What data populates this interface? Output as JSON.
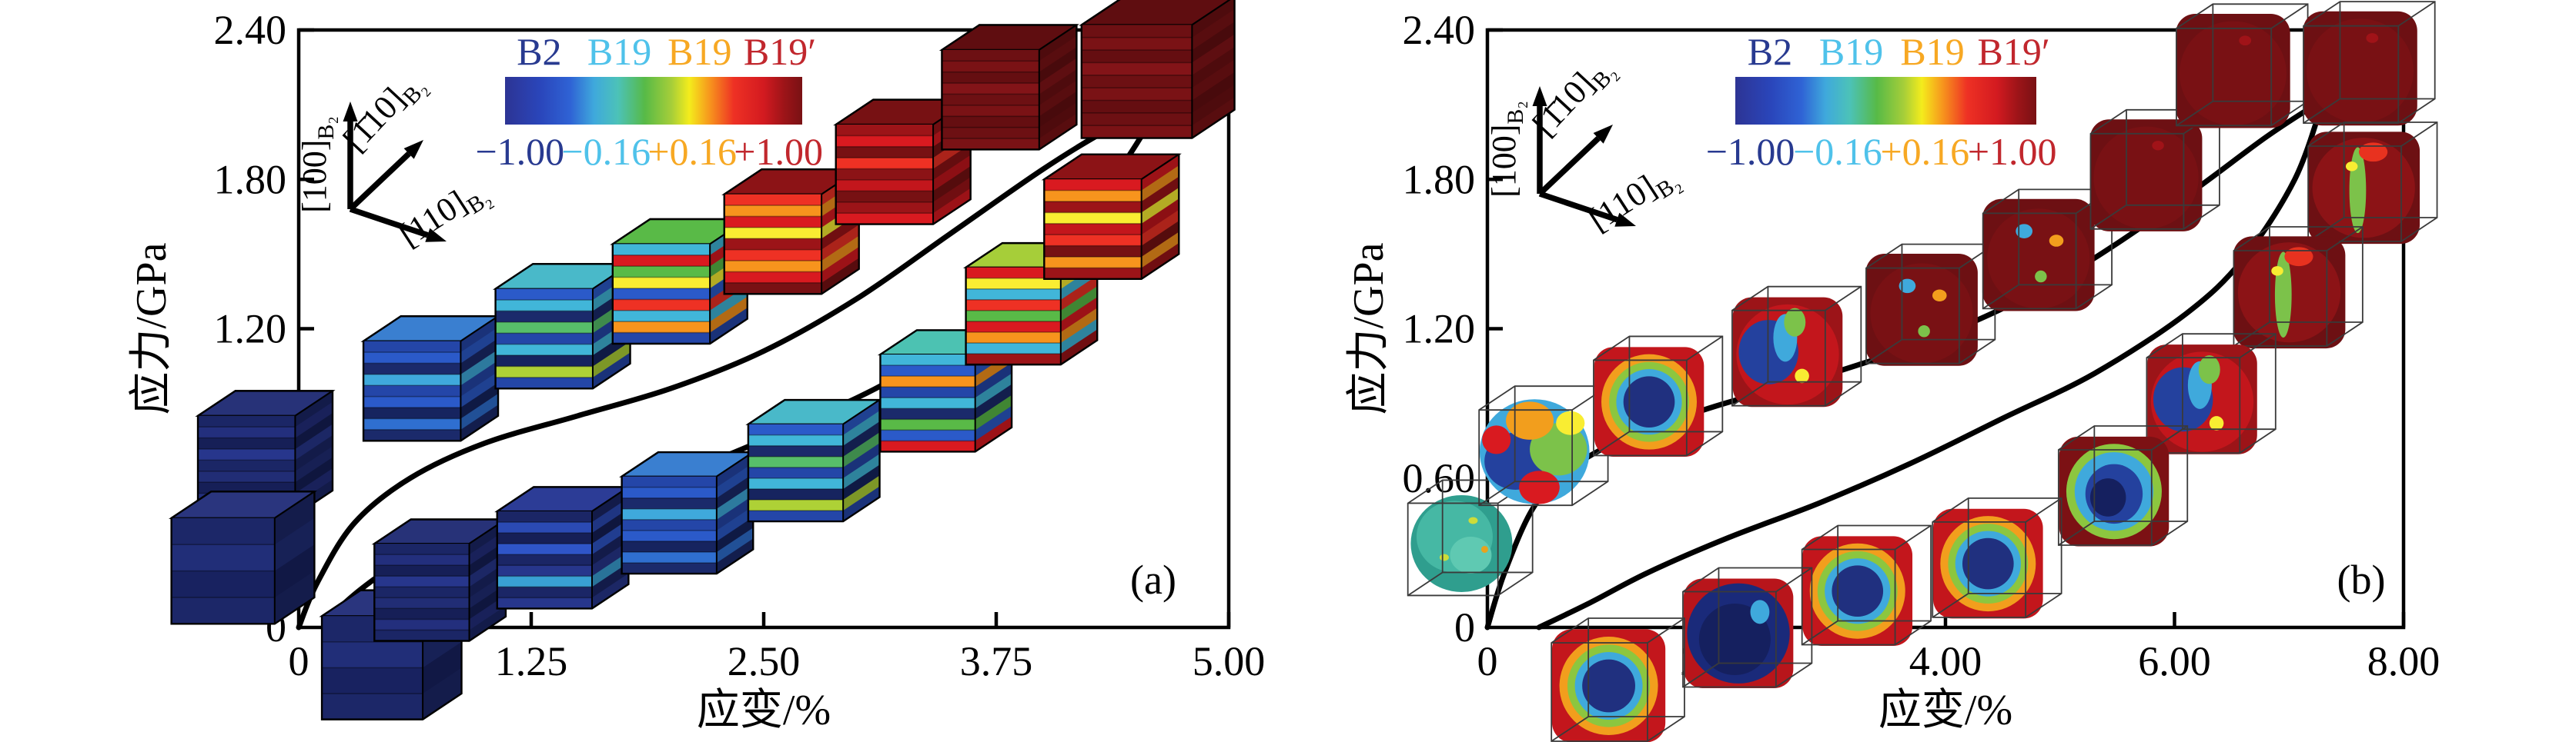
{
  "figure": {
    "background": "#ffffff",
    "description_labels": {
      "panel_a": "(a)",
      "panel_b": "(b)"
    }
  },
  "chart_data": [
    {
      "type": "line",
      "title": "(a)",
      "xlabel": "应变/%",
      "ylabel": "应力/GPa",
      "xlim": [
        0,
        5.0
      ],
      "ylim": [
        0,
        2.4
      ],
      "grid": false,
      "x_ticks": [
        0,
        1.25,
        2.5,
        3.75,
        5.0
      ],
      "x_tick_labels": [
        "0",
        "1.25",
        "2.50",
        "3.75",
        "5.00"
      ],
      "y_ticks": [
        0,
        0.6,
        1.2,
        1.8,
        2.4
      ],
      "y_tick_labels": [
        "0",
        "0.60",
        "1.20",
        "1.80",
        "2.40"
      ],
      "curve_color": "#000000",
      "series": [
        {
          "name": "loading",
          "points": [
            [
              0,
              0
            ],
            [
              0.1,
              0.18
            ],
            [
              0.3,
              0.42
            ],
            [
              0.6,
              0.6
            ],
            [
              1.0,
              0.74
            ],
            [
              1.5,
              0.85
            ],
            [
              2.0,
              0.96
            ],
            [
              2.5,
              1.11
            ],
            [
              3.0,
              1.32
            ],
            [
              3.5,
              1.58
            ],
            [
              4.0,
              1.84
            ],
            [
              4.35,
              2.0
            ],
            [
              4.63,
              2.1
            ]
          ]
        },
        {
          "name": "unloading",
          "points": [
            [
              4.63,
              2.1
            ],
            [
              4.45,
              1.88
            ],
            [
              4.1,
              1.52
            ],
            [
              3.7,
              1.25
            ],
            [
              3.2,
              1.0
            ],
            [
              2.7,
              0.82
            ],
            [
              2.2,
              0.66
            ],
            [
              1.7,
              0.52
            ],
            [
              1.2,
              0.4
            ],
            [
              0.8,
              0.34
            ],
            [
              0.5,
              0.24
            ],
            [
              0.25,
              0.1
            ],
            [
              0.15,
              0
            ]
          ]
        }
      ],
      "legend": {
        "phases": [
          {
            "label": "B2",
            "color": "#283a90"
          },
          {
            "label": "B19",
            "color": "#4fc2ea"
          },
          {
            "label": "B19",
            "color": "#f7a823"
          },
          {
            "label": "B19′",
            "color": "#c1272d"
          }
        ],
        "colorbar_tick_labels": [
          "−1.00",
          "−0.16",
          "+0.16",
          "+1.00"
        ],
        "colorbar_tick_colors": [
          "#283a90",
          "#4fc2ea",
          "#f7a823",
          "#c1272d"
        ],
        "colorbar_range": [
          -1.0,
          1.0
        ]
      },
      "inset_axes": {
        "up": "[100]",
        "diag": "[1̄10]",
        "right": "[110]",
        "subscript": "B₂"
      },
      "snapshots": [
        {
          "strain": -0.18,
          "stress": 0.7,
          "style": "layered",
          "palette": "navy",
          "size": 162
        },
        {
          "strain": 0.71,
          "stress": 1.0,
          "style": "layered",
          "palette": "blue",
          "size": 162
        },
        {
          "strain": 1.42,
          "stress": 1.21,
          "style": "layered",
          "palette": "blue_cyan",
          "size": 162
        },
        {
          "strain": 2.05,
          "stress": 1.39,
          "style": "layered",
          "palette": "mixed",
          "size": 162
        },
        {
          "strain": 2.65,
          "stress": 1.59,
          "style": "layered",
          "palette": "orange_red",
          "size": 162
        },
        {
          "strain": 3.25,
          "stress": 1.87,
          "style": "layered",
          "palette": "red",
          "size": 162
        },
        {
          "strain": 3.82,
          "stress": 2.17,
          "style": "layered",
          "palette": "darkred",
          "size": 162
        },
        {
          "strain": 4.62,
          "stress": 2.25,
          "style": "layered",
          "palette": "darkred",
          "size": 184
        },
        {
          "strain": -0.3,
          "stress": 0.28,
          "style": "layered",
          "palette": "navy_solid",
          "size": 172
        },
        {
          "strain": 0.5,
          "stress": -0.11,
          "style": "layered",
          "palette": "navy_solid",
          "size": 168
        },
        {
          "strain": 0.76,
          "stress": 0.19,
          "style": "layered",
          "palette": "navy",
          "size": 158
        },
        {
          "strain": 1.42,
          "stress": 0.32,
          "style": "layered",
          "palette": "navy_blue",
          "size": 158
        },
        {
          "strain": 2.09,
          "stress": 0.46,
          "style": "layered",
          "palette": "blue",
          "size": 158
        },
        {
          "strain": 2.77,
          "stress": 0.67,
          "style": "layered",
          "palette": "blue_cyan",
          "size": 158
        },
        {
          "strain": 3.48,
          "stress": 0.95,
          "style": "layered",
          "palette": "cyan_mixed",
          "size": 158
        },
        {
          "strain": 3.94,
          "stress": 1.3,
          "style": "layered",
          "palette": "mixed_warm",
          "size": 158
        },
        {
          "strain": 4.37,
          "stress": 1.65,
          "style": "layered",
          "palette": "red_mixed",
          "size": 162
        }
      ]
    },
    {
      "type": "line",
      "title": "(b)",
      "xlabel": "应变/%",
      "ylabel": "应力/GPa",
      "xlim": [
        0,
        8.0
      ],
      "ylim": [
        0,
        2.4
      ],
      "grid": false,
      "x_ticks": [
        0,
        2.0,
        4.0,
        6.0,
        8.0
      ],
      "x_tick_labels": [
        "0",
        "2.00",
        "4.00",
        "6.00",
        "8.00"
      ],
      "y_ticks": [
        0,
        0.6,
        1.2,
        1.8,
        2.4
      ],
      "y_tick_labels": [
        "0",
        "0.60",
        "1.20",
        "1.80",
        "2.40"
      ],
      "curve_color": "#000000",
      "series": [
        {
          "name": "loading",
          "points": [
            [
              0,
              0
            ],
            [
              0.15,
              0.22
            ],
            [
              0.4,
              0.48
            ],
            [
              0.7,
              0.63
            ],
            [
              1.2,
              0.76
            ],
            [
              2.0,
              0.89
            ],
            [
              3.0,
              1.02
            ],
            [
              4.0,
              1.18
            ],
            [
              5.0,
              1.4
            ],
            [
              6.0,
              1.7
            ],
            [
              6.8,
              1.97
            ],
            [
              7.3,
              2.12
            ]
          ]
        },
        {
          "name": "unloading",
          "points": [
            [
              7.3,
              2.12
            ],
            [
              7.05,
              1.8
            ],
            [
              6.6,
              1.48
            ],
            [
              6.1,
              1.26
            ],
            [
              5.3,
              1.02
            ],
            [
              4.5,
              0.84
            ],
            [
              3.7,
              0.66
            ],
            [
              2.9,
              0.5
            ],
            [
              2.1,
              0.36
            ],
            [
              1.4,
              0.22
            ],
            [
              0.9,
              0.1
            ],
            [
              0.45,
              0
            ]
          ]
        }
      ],
      "legend": {
        "phases": [
          {
            "label": "B2",
            "color": "#283a90"
          },
          {
            "label": "B19",
            "color": "#4fc2ea"
          },
          {
            "label": "B19",
            "color": "#f7a823"
          },
          {
            "label": "B19′",
            "color": "#c1272d"
          }
        ],
        "colorbar_tick_labels": [
          "−1.00",
          "−0.16",
          "+0.16",
          "+1.00"
        ],
        "colorbar_tick_colors": [
          "#283a90",
          "#4fc2ea",
          "#f7a823",
          "#c1272d"
        ],
        "colorbar_range": [
          -1.0,
          1.0
        ]
      },
      "inset_axes": {
        "up": "[100]",
        "diag": "[1̄10]",
        "right": "[110]",
        "subscript": "B₂"
      },
      "snapshots": [
        {
          "strain": -0.15,
          "stress": 0.36,
          "style": "blob",
          "palette": "sphere_teal",
          "size": 150
        },
        {
          "strain": 0.49,
          "stress": 0.73,
          "style": "blob",
          "palette": "rainbow",
          "size": 155
        },
        {
          "strain": 1.49,
          "stress": 0.93,
          "style": "blob",
          "palette": "ring_blue_red",
          "size": 155
        },
        {
          "strain": 2.7,
          "stress": 1.13,
          "style": "blob",
          "palette": "red_blue",
          "size": 155
        },
        {
          "strain": 3.87,
          "stress": 1.3,
          "style": "blob",
          "palette": "maroon_specks",
          "size": 155
        },
        {
          "strain": 4.89,
          "stress": 1.52,
          "style": "blob",
          "palette": "maroon_specks",
          "size": 155
        },
        {
          "strain": 5.83,
          "stress": 1.84,
          "style": "blob",
          "palette": "maroon",
          "size": 155
        },
        {
          "strain": 6.59,
          "stress": 2.26,
          "style": "blob",
          "palette": "maroon",
          "size": 158
        },
        {
          "strain": 7.7,
          "stress": 2.27,
          "style": "blob",
          "palette": "maroon",
          "size": 158
        },
        {
          "strain": 7.73,
          "stress": 1.79,
          "style": "blob",
          "palette": "maroon_green",
          "size": 155
        },
        {
          "strain": 7.08,
          "stress": 1.37,
          "style": "blob",
          "palette": "maroon_green",
          "size": 155
        },
        {
          "strain": 6.32,
          "stress": 0.94,
          "style": "blob",
          "palette": "red_blue",
          "size": 155
        },
        {
          "strain": 5.55,
          "stress": 0.57,
          "style": "blob",
          "palette": "blue_maroon",
          "size": 155
        },
        {
          "strain": 4.45,
          "stress": 0.28,
          "style": "blob",
          "palette": "ring_blue_red",
          "size": 155
        },
        {
          "strain": 3.31,
          "stress": 0.17,
          "style": "blob",
          "palette": "ring_blue_red",
          "size": 155
        },
        {
          "strain": 2.27,
          "stress": 0.0,
          "style": "blob",
          "palette": "darkblue_red",
          "size": 155
        },
        {
          "strain": 1.14,
          "stress": -0.21,
          "style": "blob",
          "palette": "ring_blue_red",
          "size": 160
        }
      ]
    }
  ],
  "colorbar_gradient_stops": [
    [
      0.0,
      "#2d3494"
    ],
    [
      0.12,
      "#2a46bb"
    ],
    [
      0.22,
      "#2f63d5"
    ],
    [
      0.3,
      "#3fa9dc"
    ],
    [
      0.38,
      "#4cc2b8"
    ],
    [
      0.47,
      "#57ba47"
    ],
    [
      0.56,
      "#a6ce39"
    ],
    [
      0.62,
      "#f4ec1c"
    ],
    [
      0.69,
      "#f7941d"
    ],
    [
      0.77,
      "#ee3124"
    ],
    [
      0.87,
      "#d31a20"
    ],
    [
      0.94,
      "#9c1418"
    ],
    [
      1.0,
      "#791114"
    ]
  ]
}
